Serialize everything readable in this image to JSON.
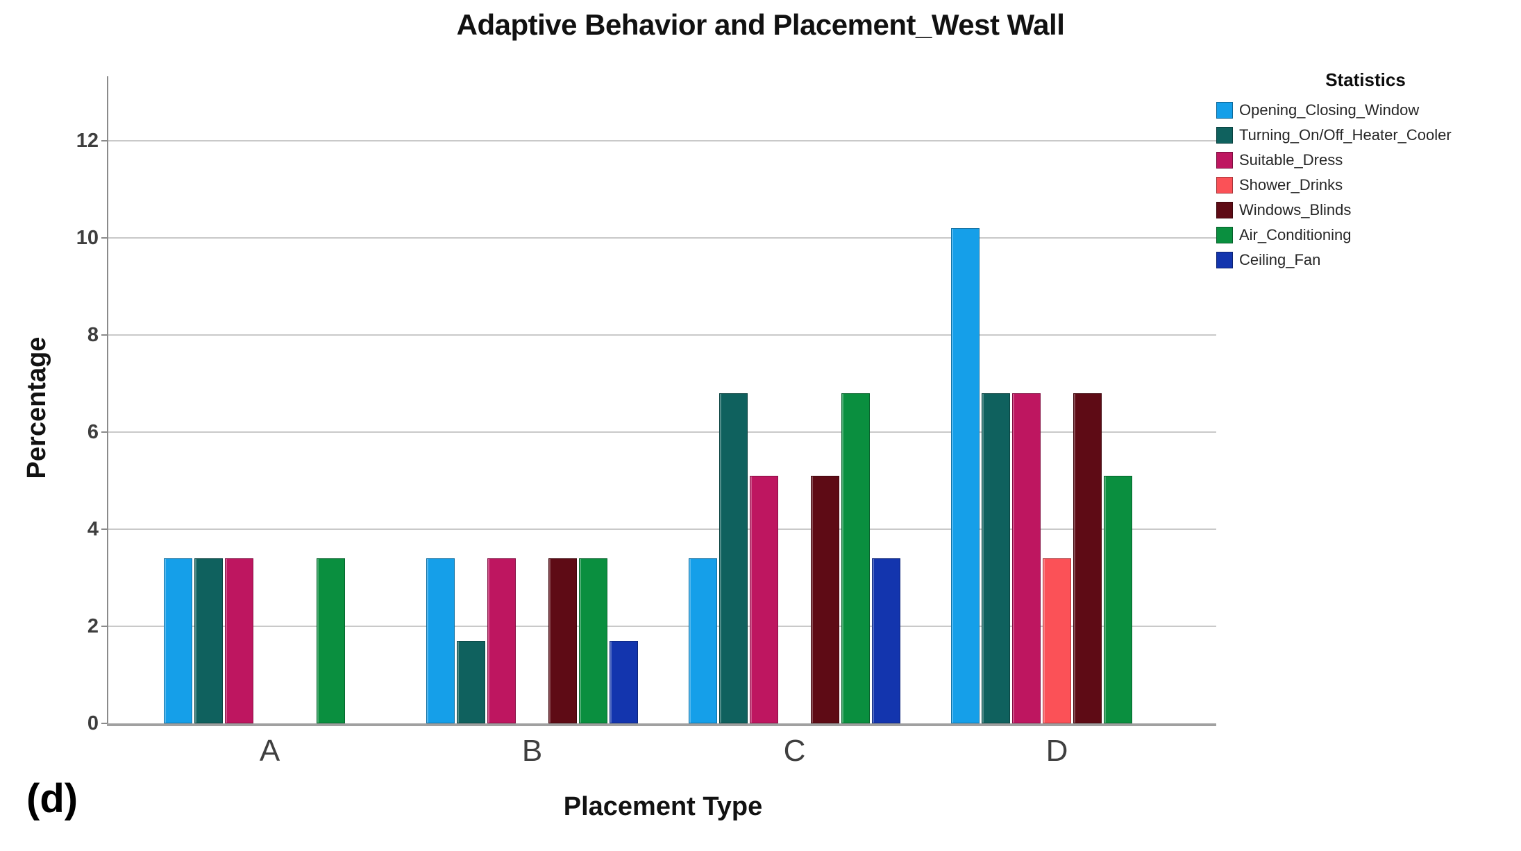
{
  "figure": {
    "panel_label": "(d)"
  },
  "chart_data": {
    "type": "bar",
    "title": "Adaptive Behavior and Placement_West Wall",
    "xlabel": "Placement Type",
    "ylabel": "Percentage",
    "legend_title": "Statistics",
    "legend_position": "top-right",
    "grid": true,
    "categories": [
      "A",
      "B",
      "C",
      "D"
    ],
    "y_ticks": [
      0,
      2,
      4,
      6,
      8,
      10,
      12
    ],
    "ylim": [
      0,
      13.3
    ],
    "series": [
      {
        "name": "Opening_Closing_Window",
        "color": "#159FE9",
        "values": [
          3.4,
          3.4,
          3.4,
          10.2
        ]
      },
      {
        "name": "Turning_On/Off_Heater_Cooler",
        "color": "#0F615E",
        "values": [
          3.4,
          1.7,
          6.8,
          6.8
        ]
      },
      {
        "name": "Suitable_Dress",
        "color": "#BE1660",
        "values": [
          3.4,
          3.4,
          5.1,
          6.8
        ]
      },
      {
        "name": "Shower_Drinks",
        "color": "#FB5157",
        "values": [
          0,
          0,
          0,
          3.4
        ]
      },
      {
        "name": "Windows_Blinds",
        "color": "#5E0B15",
        "values": [
          0,
          3.4,
          5.1,
          6.8
        ]
      },
      {
        "name": "Air_Conditioning",
        "color": "#0A8F3F",
        "values": [
          3.4,
          3.4,
          6.8,
          5.1
        ]
      },
      {
        "name": "Ceiling_Fan",
        "color": "#1335AE",
        "values": [
          0,
          1.7,
          3.4,
          0
        ]
      }
    ]
  }
}
